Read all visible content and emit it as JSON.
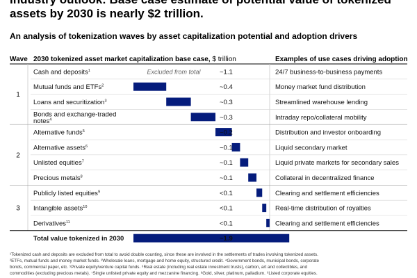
{
  "header": {
    "title": "Industry outlook: Base case estimate of potential value of tokenized assets by 2030 is nearly $2 trillion.",
    "subtitle": "An analysis of tokenization waves by asset capitalization potential and adoption drivers",
    "col_wave": "Wave",
    "col_chart": "2030 tokenized asset market capitalization base case,",
    "col_chart_unit": "$ trillion",
    "col_examples": "Examples of use cases driving adoption"
  },
  "chart_data": {
    "type": "bar",
    "orientation": "horizontal-waterfall",
    "unit": "$ trillion",
    "waves": [
      {
        "label": "1",
        "rows": [
          0,
          3
        ]
      },
      {
        "label": "2",
        "rows": [
          4,
          7
        ]
      },
      {
        "label": "3",
        "rows": [
          8,
          10
        ]
      }
    ],
    "rows": [
      {
        "category": "Cash and deposits",
        "sup": "1",
        "value": 1.1,
        "value_label": "~1.1",
        "excluded": true,
        "excluded_label": "Excluded from total",
        "use_case": "24/7 business-to-business payments"
      },
      {
        "category": "Mutual funds and ETFs",
        "sup": "2",
        "value": 0.4,
        "value_label": "~0.4",
        "use_case": "Money market fund distribution"
      },
      {
        "category": "Loans and securitization",
        "sup": "3",
        "value": 0.3,
        "value_label": "~0.3",
        "use_case": "Streamlined warehouse lending"
      },
      {
        "category": "Bonds and exchange-traded notes",
        "sup": "4",
        "value": 0.3,
        "value_label": "~0.3",
        "use_case": "Intraday repo/collateral mobility"
      },
      {
        "category": "Alternative funds",
        "sup": "5",
        "value": 0.2,
        "value_label": "~0.2",
        "use_case": "Distribution and investor onboarding"
      },
      {
        "category": "Alternative assets",
        "sup": "6",
        "value": 0.1,
        "value_label": "~0.1",
        "use_case": "Liquid secondary market"
      },
      {
        "category": "Unlisted equities",
        "sup": "7",
        "value": 0.1,
        "value_label": "~0.1",
        "use_case": "Liquid private markets for secondary sales"
      },
      {
        "category": "Precious metals",
        "sup": "8",
        "value": 0.1,
        "value_label": "~0.1",
        "use_case": "Collateral in decentralized finance"
      },
      {
        "category": "Publicly listed equities",
        "sup": "9",
        "value": 0.07,
        "value_label": "<0.1",
        "use_case": "Clearing and settlement efficiencies"
      },
      {
        "category": "Intangible assets",
        "sup": "10",
        "value": 0.05,
        "value_label": "<0.1",
        "use_case": "Real-time distribution of royalties"
      },
      {
        "category": "Derivatives",
        "sup": "11",
        "value": 0.04,
        "value_label": "<0.1",
        "use_case": "Clearing and settlement efficiencies"
      }
    ],
    "total": {
      "category": "Total value tokenized in 2030",
      "value": 1.9,
      "value_label": "~1.9"
    },
    "bar_color": "#051c7c"
  },
  "footnotes": [
    "¹Tokenized cash and deposits are excluded from total to avoid double counting, since these are involved in the settlements of trades involving tokenized assets.",
    "²ETFs, mutual funds and money market funds. ³Wholesale loans, mortgage and home equity, structured credit. ⁴Government bonds, municipal bonds, corporate",
    "bonds, commercial paper, etc. ⁵Private equity/venture capital funds. ⁶Real estate (including real estate investment trusts), carbon, art and collectibles, and",
    "commodities (excluding precious metals). ⁷Single unlisted private equity and mezzanine financing. ⁸Gold, silver, platinum, palladium. ⁹Listed corporate equities."
  ]
}
